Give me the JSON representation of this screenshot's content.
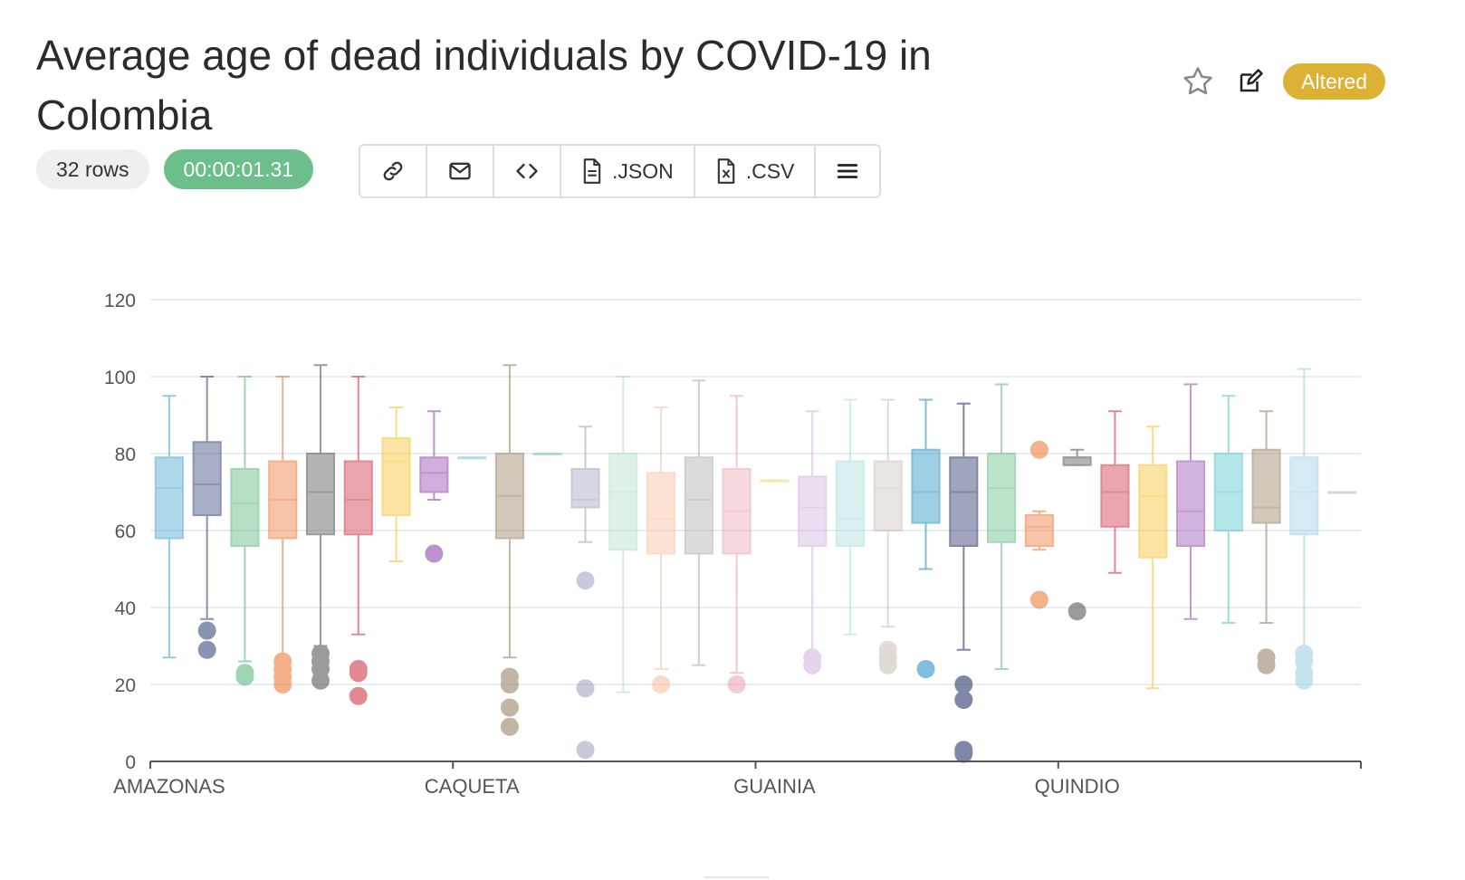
{
  "header": {
    "title": "Average age of dead individuals by COVID-19 in Colombia",
    "altered_label": "Altered",
    "star_icon": "star-icon",
    "edit_icon": "edit-icon"
  },
  "meta": {
    "rows_label": "32 rows",
    "time_label": "00:00:01.31"
  },
  "toolbar": {
    "json_label": ".JSON",
    "csv_label": ".CSV",
    "icons": [
      "link-icon",
      "mail-icon",
      "code-icon",
      "json-file-icon",
      "csv-file-icon",
      "menu-icon"
    ]
  },
  "colors": {
    "altered": "#dcb134",
    "time_pill": "#6cbf8a"
  },
  "chart_data": {
    "type": "box",
    "title": "",
    "xlabel": "",
    "ylabel": "",
    "ylim": [
      0,
      120
    ],
    "yticks": [
      0,
      20,
      40,
      60,
      80,
      100,
      120
    ],
    "xticks": [
      {
        "index": 0,
        "label": "AMAZONAS"
      },
      {
        "index": 8,
        "label": "CAQUETA"
      },
      {
        "index": 16,
        "label": "GUAINIA"
      },
      {
        "index": 24,
        "label": "QUINDIO"
      }
    ],
    "grid": true,
    "boxes": [
      {
        "min": 27,
        "q1": 58,
        "median": 71,
        "q3": 79,
        "max": 95,
        "outliers": [],
        "color": "#5bb0d6",
        "opacity": 0.65
      },
      {
        "min": 37,
        "q1": 64,
        "median": 72,
        "q3": 83,
        "max": 100,
        "outliers": [
          34,
          29
        ],
        "color": "#4d5a8a",
        "opacity": 0.65
      },
      {
        "min": 26,
        "q1": 56,
        "median": 67,
        "q3": 76,
        "max": 100,
        "outliers": [
          23,
          22
        ],
        "color": "#6cbf8a",
        "opacity": 0.65
      },
      {
        "min": 27,
        "q1": 58,
        "median": 68,
        "q3": 78,
        "max": 100,
        "outliers": [
          26,
          24,
          22,
          20
        ],
        "color": "#f0874b",
        "opacity": 0.65
      },
      {
        "min": 30,
        "q1": 59,
        "median": 70,
        "q3": 80,
        "max": 103,
        "outliers": [
          28,
          26,
          24,
          21
        ],
        "color": "#666666",
        "opacity": 0.65
      },
      {
        "min": 33,
        "q1": 59,
        "median": 68,
        "q3": 78,
        "max": 100,
        "outliers": [
          24,
          23,
          17
        ],
        "color": "#d44a5a",
        "opacity": 0.65
      },
      {
        "min": 52,
        "q1": 64,
        "median": 78,
        "q3": 84,
        "max": 92,
        "outliers": [],
        "color": "#f7c943",
        "opacity": 0.65
      },
      {
        "min": 68,
        "q1": 70,
        "median": 75,
        "q3": 79,
        "max": 91,
        "outliers": [
          54
        ],
        "color": "#9b59b6",
        "opacity": 0.65
      },
      {
        "min": 79,
        "q1": 79,
        "median": 79,
        "q3": 79,
        "max": 79,
        "outliers": [],
        "color": "#5bb0d6",
        "opacity": 0.45
      },
      {
        "min": 27,
        "q1": 58,
        "median": 69,
        "q3": 80,
        "max": 103,
        "outliers": [
          22,
          20,
          14,
          9
        ],
        "color": "#a38f74",
        "opacity": 0.65
      },
      {
        "min": 80,
        "q1": 80,
        "median": 80,
        "q3": 80,
        "max": 80,
        "outliers": [],
        "color": "#6cbf8a",
        "opacity": 0.45
      },
      {
        "min": 57,
        "q1": 66,
        "median": 68,
        "q3": 76,
        "max": 87,
        "outliers": [
          47,
          19,
          3
        ],
        "color": "#8e96b8",
        "opacity": 0.5
      },
      {
        "min": 18,
        "q1": 55,
        "median": 70,
        "q3": 80,
        "max": 100,
        "outliers": [],
        "color": "#a8dcbd",
        "opacity": 0.5
      },
      {
        "min": 24,
        "q1": 54,
        "median": 63,
        "q3": 75,
        "max": 92,
        "outliers": [
          20
        ],
        "color": "#f7b692",
        "opacity": 0.5
      },
      {
        "min": 25,
        "q1": 54,
        "median": 68,
        "q3": 79,
        "max": 99,
        "outliers": [],
        "color": "#a3a3a3",
        "opacity": 0.5
      },
      {
        "min": 23,
        "q1": 54,
        "median": 65,
        "q3": 76,
        "max": 95,
        "outliers": [
          20
        ],
        "color": "#e499a3",
        "opacity": 0.5
      },
      {
        "min": 73,
        "q1": 73,
        "median": 73,
        "q3": 73,
        "max": 73,
        "outliers": [],
        "color": "#f7c943",
        "opacity": 0.45
      },
      {
        "min": 28,
        "q1": 56,
        "median": 66,
        "q3": 74,
        "max": 91,
        "outliers": [
          27,
          25
        ],
        "color": "#c8a8d8",
        "opacity": 0.5
      },
      {
        "min": 33,
        "q1": 56,
        "median": 63,
        "q3": 78,
        "max": 94,
        "outliers": [],
        "color": "#9ed8dc",
        "opacity": 0.5
      },
      {
        "min": 35,
        "q1": 60,
        "median": 71,
        "q3": 78,
        "max": 94,
        "outliers": [
          29,
          27,
          25
        ],
        "color": "#c4b8ad",
        "opacity": 0.5
      },
      {
        "min": 50,
        "q1": 62,
        "median": 70,
        "q3": 81,
        "max": 94,
        "outliers": [
          24
        ],
        "color": "#3b9dc9",
        "opacity": 0.65
      },
      {
        "min": 29,
        "q1": 56,
        "median": 70,
        "q3": 79,
        "max": 93,
        "outliers": [
          20,
          16,
          3,
          2
        ],
        "color": "#3d4677",
        "opacity": 0.65
      },
      {
        "min": 24,
        "q1": 57,
        "median": 71,
        "q3": 80,
        "max": 98,
        "outliers": [],
        "color": "#6cbf8a",
        "opacity": 0.6
      },
      {
        "min": 55,
        "q1": 56,
        "median": 61,
        "q3": 64,
        "max": 65,
        "outliers": [
          81,
          42
        ],
        "color": "#f0874b",
        "opacity": 0.65
      },
      {
        "min": 77,
        "q1": 77,
        "median": 79,
        "q3": 79,
        "max": 81,
        "outliers": [
          39
        ],
        "color": "#666666",
        "opacity": 0.65
      },
      {
        "min": 49,
        "q1": 61,
        "median": 70,
        "q3": 77,
        "max": 91,
        "outliers": [],
        "color": "#d44a5a",
        "opacity": 0.65
      },
      {
        "min": 19,
        "q1": 53,
        "median": 69,
        "q3": 77,
        "max": 87,
        "outliers": [],
        "color": "#f7c943",
        "opacity": 0.65
      },
      {
        "min": 37,
        "q1": 56,
        "median": 65,
        "q3": 78,
        "max": 98,
        "outliers": [],
        "color": "#9b59b6",
        "opacity": 0.6
      },
      {
        "min": 36,
        "q1": 60,
        "median": 70,
        "q3": 80,
        "max": 95,
        "outliers": [],
        "color": "#5cc7c9",
        "opacity": 0.6
      },
      {
        "min": 36,
        "q1": 62,
        "median": 66,
        "q3": 81,
        "max": 91,
        "outliers": [
          27,
          25
        ],
        "color": "#a38f74",
        "opacity": 0.65
      },
      {
        "min": 29,
        "q1": 59,
        "median": 70,
        "q3": 79,
        "max": 102,
        "outliers": [
          28,
          26,
          23,
          21
        ],
        "color": "#8ccbe3",
        "opacity": 0.5
      },
      {
        "min": 70,
        "q1": 70,
        "median": 70,
        "q3": 70,
        "max": 70,
        "outliers": [],
        "color": "#a3a3a3",
        "opacity": 0.45
      }
    ]
  }
}
